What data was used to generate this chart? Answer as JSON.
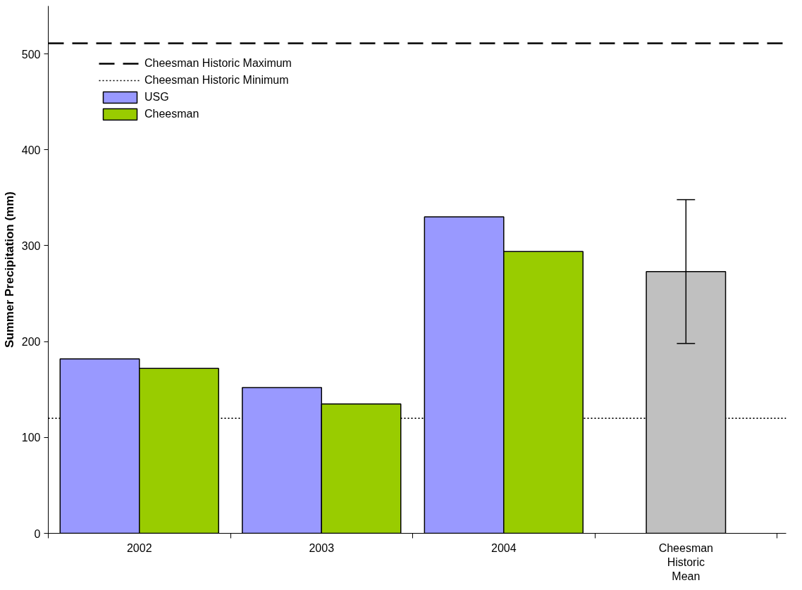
{
  "chart_data": {
    "type": "bar",
    "ylabel": "Summer Precipitation (mm)",
    "categories": [
      "2002",
      "2003",
      "2004",
      "Cheesman Historic Mean"
    ],
    "series": [
      {
        "name": "USG",
        "color": "#9999ff",
        "values": [
          182,
          152,
          330,
          null
        ]
      },
      {
        "name": "Cheesman",
        "color": "#99cc00",
        "values": [
          172,
          135,
          294,
          null
        ]
      },
      {
        "color": "#c0c0c0",
        "values": [
          null,
          null,
          null,
          273
        ],
        "errors": [
          null,
          null,
          null,
          [
            198,
            348
          ]
        ]
      }
    ],
    "ylim": [
      0,
      550
    ],
    "yticks": [
      0,
      100,
      200,
      300,
      400,
      500
    ],
    "ref_lines": [
      {
        "axis": "y",
        "value": 511,
        "label": "Cheesman Historic Maximum",
        "line_style": "dashed"
      },
      {
        "axis": "y",
        "value": 120,
        "label": "Cheesman Historic Minimum",
        "line_style": "dotted"
      }
    ],
    "legend": "top left",
    "grid": false
  }
}
